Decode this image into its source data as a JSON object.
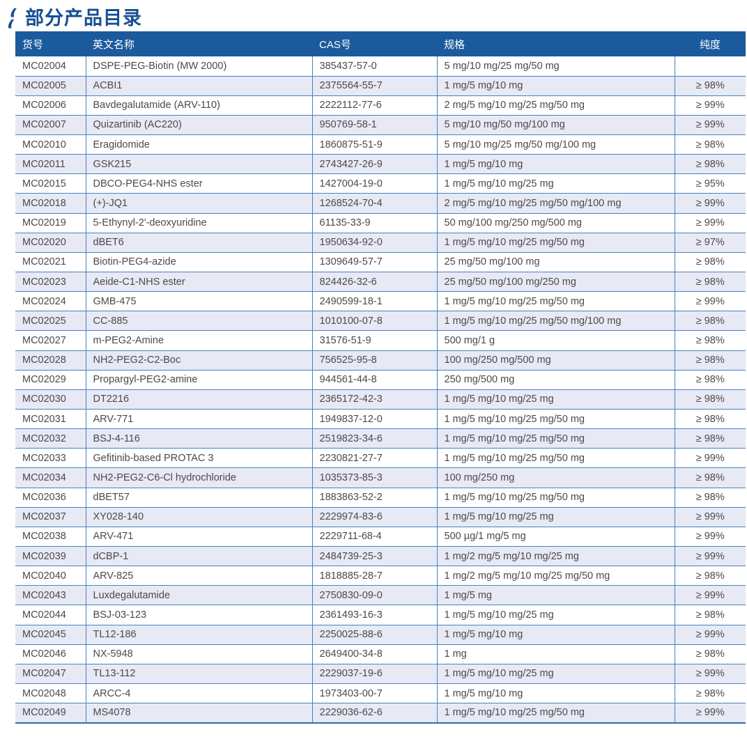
{
  "page": {
    "title": "部分产品目录"
  },
  "icons": {
    "title_bullet": "double-flame-slash"
  },
  "colors": {
    "header_bg": "#1b5a9c",
    "accent": "#174f94",
    "row_alt": "#e7eaf5",
    "border": "#4a80bd",
    "border_bottom": "#2e6cad",
    "body_text": "#4a4a4a",
    "header_text": "#ffffff"
  },
  "table": {
    "columns": [
      {
        "key": "item_no",
        "label": "货号",
        "align": "left"
      },
      {
        "key": "name",
        "label": "英文名称",
        "align": "left"
      },
      {
        "key": "cas",
        "label": "CAS号",
        "align": "left"
      },
      {
        "key": "spec",
        "label": "规格",
        "align": "left"
      },
      {
        "key": "purity",
        "label": "纯度",
        "align": "center"
      }
    ],
    "rows": [
      {
        "item_no": "MC02004",
        "name": "DSPE-PEG-Biotin (MW 2000)",
        "cas": "385437-57-0",
        "spec": "5 mg/10 mg/25 mg/50 mg",
        "purity": ""
      },
      {
        "item_no": "MC02005",
        "name": "ACBI1",
        "cas": "2375564-55-7",
        "spec": "1 mg/5 mg/10 mg",
        "purity": "≥ 98%"
      },
      {
        "item_no": "MC02006",
        "name": "Bavdegalutamide (ARV-110)",
        "cas": "2222112-77-6",
        "spec": "2 mg/5 mg/10 mg/25 mg/50 mg",
        "purity": "≥ 99%"
      },
      {
        "item_no": "MC02007",
        "name": "Quizartinib (AC220)",
        "cas": "950769-58-1",
        "spec": "5 mg/10 mg/50 mg/100 mg",
        "purity": "≥ 99%"
      },
      {
        "item_no": "MC02010",
        "name": "Eragidomide",
        "cas": "1860875-51-9",
        "spec": "5 mg/10 mg/25 mg/50 mg/100 mg",
        "purity": "≥ 98%"
      },
      {
        "item_no": "MC02011",
        "name": "GSK215",
        "cas": "2743427-26-9",
        "spec": "1 mg/5 mg/10 mg",
        "purity": "≥ 98%"
      },
      {
        "item_no": "MC02015",
        "name": "DBCO-PEG4-NHS ester",
        "cas": "1427004-19-0",
        "spec": "1 mg/5 mg/10 mg/25 mg",
        "purity": "≥ 95%"
      },
      {
        "item_no": "MC02018",
        "name": "(+)-JQ1",
        "cas": "1268524-70-4",
        "spec": "2 mg/5 mg/10 mg/25 mg/50 mg/100 mg",
        "purity": "≥ 99%"
      },
      {
        "item_no": "MC02019",
        "name": "5-Ethynyl-2'-deoxyuridine",
        "cas": "61135-33-9",
        "spec": "50 mg/100 mg/250 mg/500 mg",
        "purity": "≥ 99%"
      },
      {
        "item_no": "MC02020",
        "name": "dBET6",
        "cas": "1950634-92-0",
        "spec": "1 mg/5 mg/10 mg/25 mg/50 mg",
        "purity": "≥ 97%"
      },
      {
        "item_no": "MC02021",
        "name": "Biotin-PEG4-azide",
        "cas": "1309649-57-7",
        "spec": "25 mg/50 mg/100 mg",
        "purity": "≥ 98%"
      },
      {
        "item_no": "MC02023",
        "name": "Aeide-C1-NHS ester",
        "cas": "824426-32-6",
        "spec": "25 mg/50 mg/100 mg/250 mg",
        "purity": "≥ 98%"
      },
      {
        "item_no": "MC02024",
        "name": "GMB-475",
        "cas": "2490599-18-1",
        "spec": "1 mg/5 mg/10 mg/25 mg/50 mg",
        "purity": "≥ 99%"
      },
      {
        "item_no": "MC02025",
        "name": "CC-885",
        "cas": "1010100-07-8",
        "spec": "1 mg/5 mg/10 mg/25 mg/50 mg/100 mg",
        "purity": "≥ 98%"
      },
      {
        "item_no": "MC02027",
        "name": "m-PEG2-Amine",
        "cas": "31576-51-9",
        "spec": "500 mg/1 g",
        "purity": "≥ 98%"
      },
      {
        "item_no": "MC02028",
        "name": "NH2-PEG2-C2-Boc",
        "cas": "756525-95-8",
        "spec": "100 mg/250 mg/500 mg",
        "purity": "≥ 98%"
      },
      {
        "item_no": "MC02029",
        "name": "Propargyl-PEG2-amine",
        "cas": "944561-44-8",
        "spec": "250 mg/500 mg",
        "purity": "≥ 98%"
      },
      {
        "item_no": "MC02030",
        "name": "DT2216",
        "cas": "2365172-42-3",
        "spec": "1 mg/5 mg/10 mg/25 mg",
        "purity": "≥ 98%"
      },
      {
        "item_no": "MC02031",
        "name": "ARV-771",
        "cas": "1949837-12-0",
        "spec": "1 mg/5 mg/10 mg/25 mg/50 mg",
        "purity": "≥ 98%"
      },
      {
        "item_no": "MC02032",
        "name": "BSJ-4-116",
        "cas": "2519823-34-6",
        "spec": "1 mg/5 mg/10 mg/25 mg/50 mg",
        "purity": "≥ 98%"
      },
      {
        "item_no": "MC02033",
        "name": "Gefitinib-based PROTAC 3",
        "cas": "2230821-27-7",
        "spec": "1 mg/5 mg/10 mg/25 mg/50 mg",
        "purity": "≥ 99%"
      },
      {
        "item_no": "MC02034",
        "name": "NH2-PEG2-C6-Cl hydrochloride",
        "cas": "1035373-85-3",
        "spec": "100 mg/250 mg",
        "purity": "≥ 98%"
      },
      {
        "item_no": "MC02036",
        "name": "dBET57",
        "cas": "1883863-52-2",
        "spec": "1 mg/5 mg/10 mg/25 mg/50 mg",
        "purity": "≥ 98%"
      },
      {
        "item_no": "MC02037",
        "name": "XY028-140",
        "cas": "2229974-83-6",
        "spec": "1 mg/5 mg/10 mg/25 mg",
        "purity": "≥ 99%"
      },
      {
        "item_no": "MC02038",
        "name": "ARV-471",
        "cas": "2229711-68-4",
        "spec": "500 µg/1 mg/5 mg",
        "purity": "≥ 99%"
      },
      {
        "item_no": "MC02039",
        "name": "dCBP-1",
        "cas": "2484739-25-3",
        "spec": "1 mg/2 mg/5 mg/10 mg/25 mg",
        "purity": "≥ 99%"
      },
      {
        "item_no": "MC02040",
        "name": "ARV-825",
        "cas": "1818885-28-7",
        "spec": "1 mg/2 mg/5 mg/10 mg/25 mg/50 mg",
        "purity": "≥ 98%"
      },
      {
        "item_no": "MC02043",
        "name": "Luxdegalutamide",
        "cas": "2750830-09-0",
        "spec": "1 mg/5 mg",
        "purity": "≥ 99%"
      },
      {
        "item_no": "MC02044",
        "name": "BSJ-03-123",
        "cas": "2361493-16-3",
        "spec": "1 mg/5 mg/10 mg/25 mg",
        "purity": "≥ 98%"
      },
      {
        "item_no": "MC02045",
        "name": "TL12-186",
        "cas": "2250025-88-6",
        "spec": "1 mg/5 mg/10 mg",
        "purity": "≥ 99%"
      },
      {
        "item_no": "MC02046",
        "name": "NX-5948",
        "cas": "2649400-34-8",
        "spec": "1 mg",
        "purity": "≥ 98%"
      },
      {
        "item_no": "MC02047",
        "name": "TL13-112",
        "cas": "2229037-19-6",
        "spec": "1 mg/5 mg/10 mg/25 mg",
        "purity": "≥ 99%"
      },
      {
        "item_no": "MC02048",
        "name": "ARCC-4",
        "cas": "1973403-00-7",
        "spec": "1 mg/5 mg/10 mg",
        "purity": "≥ 98%"
      },
      {
        "item_no": "MC02049",
        "name": "MS4078",
        "cas": "2229036-62-6",
        "spec": "1 mg/5 mg/10 mg/25 mg/50 mg",
        "purity": "≥ 99%"
      }
    ]
  }
}
